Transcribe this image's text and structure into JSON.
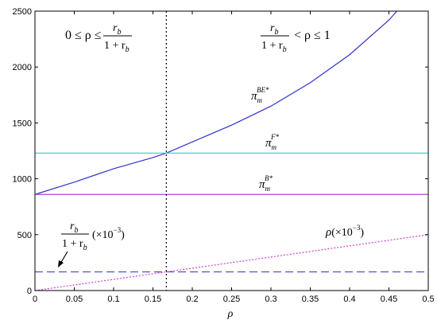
{
  "chart_data": {
    "type": "line",
    "title": "",
    "xlabel": "ρ",
    "ylabel": "",
    "xlim": [
      0,
      0.5
    ],
    "ylim": [
      0,
      2500
    ],
    "grid": false,
    "x_ticks": [
      "0",
      "0.05",
      "0.1",
      "0.15",
      "0.2",
      "0.25",
      "0.3",
      "0.35",
      "0.4",
      "0.45",
      "0.5"
    ],
    "y_ticks": [
      "0",
      "500",
      "1000",
      "1500",
      "2000",
      "2500"
    ],
    "threshold_x": 0.167,
    "series": [
      {
        "key": "pi_BE",
        "color": "#3333cc",
        "style": "solid",
        "x": [
          0,
          0.05,
          0.1,
          0.15,
          0.167,
          0.2,
          0.25,
          0.3,
          0.35,
          0.4,
          0.45,
          0.46
        ],
        "y": [
          860,
          970,
          1090,
          1190,
          1230,
          1330,
          1480,
          1650,
          1860,
          2110,
          2420,
          2500
        ]
      },
      {
        "key": "pi_F",
        "color": "#33cccc",
        "style": "solid",
        "x": [
          0,
          0.5
        ],
        "y": [
          1230,
          1230
        ]
      },
      {
        "key": "pi_B",
        "color": "#aa44dd",
        "style": "solid",
        "x": [
          0,
          0.5
        ],
        "y": [
          860,
          860
        ]
      },
      {
        "key": "rb_ratio",
        "color": "#4444cc",
        "style": "dashed",
        "x": [
          0,
          0.5
        ],
        "y": [
          167,
          167
        ]
      },
      {
        "key": "rho",
        "color": "#cc44cc",
        "style": "dotted",
        "x": [
          0,
          0.5
        ],
        "y": [
          0,
          500
        ]
      }
    ],
    "annotations": {
      "region_left": {
        "lhs": "0 ≤ ρ ≤",
        "num": "r",
        "num_sub": "b",
        "den": "1 + r",
        "den_sub": "b"
      },
      "region_right": {
        "num": "r",
        "num_sub": "b",
        "den": "1 + r",
        "den_sub": "b",
        "rhs": "< ρ ≤ 1"
      },
      "pi_BE_label": {
        "base": "π",
        "sub": "m",
        "sup": "BE*"
      },
      "pi_F_label": {
        "base": "π",
        "sub": "m",
        "sup": "F*"
      },
      "pi_B_label": {
        "base": "π",
        "sub": "m",
        "sup": "B*"
      },
      "rb_label": {
        "num": "r",
        "num_sub": "b",
        "den": "1 + r",
        "den_sub": "b",
        "factor": "(×10",
        "exp": "−3",
        "close": ")"
      },
      "rho_label": {
        "base": "ρ",
        "factor": "(×10",
        "exp": "−3",
        "close": ")"
      }
    }
  }
}
